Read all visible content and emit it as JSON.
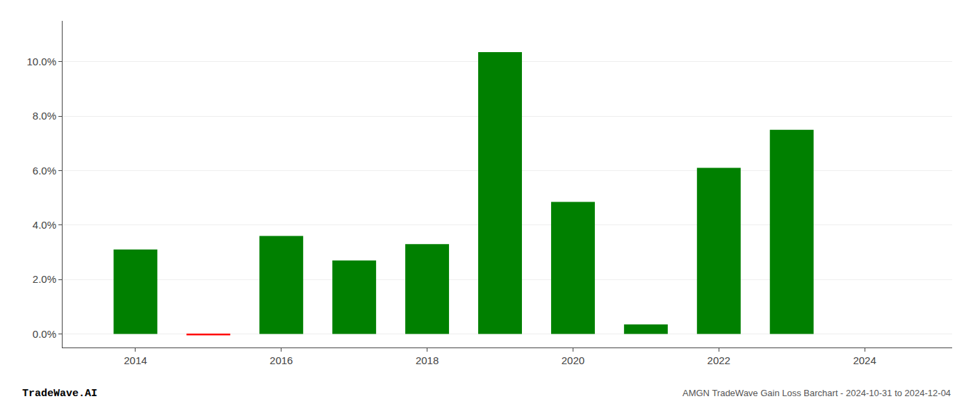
{
  "chart_data": {
    "type": "bar",
    "x": [
      2014,
      2015,
      2016,
      2017,
      2018,
      2019,
      2020,
      2021,
      2022,
      2023
    ],
    "values": [
      0.031,
      -0.0005,
      0.036,
      0.027,
      0.033,
      0.1035,
      0.0485,
      0.0035,
      0.061,
      0.075
    ],
    "colors": [
      "#008000",
      "#ff0000",
      "#008000",
      "#008000",
      "#008000",
      "#008000",
      "#008000",
      "#008000",
      "#008000",
      "#008000"
    ],
    "xlim": [
      2013.0,
      2025.2
    ],
    "xticks": [
      2014,
      2016,
      2018,
      2020,
      2022,
      2024
    ],
    "ylim": [
      -0.005,
      0.115
    ],
    "yticks": [
      {
        "value": 0.0,
        "label": "0.0%"
      },
      {
        "value": 0.02,
        "label": "2.0%"
      },
      {
        "value": 0.04,
        "label": "4.0%"
      },
      {
        "value": 0.06,
        "label": "6.0%"
      },
      {
        "value": 0.08,
        "label": "8.0%"
      },
      {
        "value": 0.1,
        "label": "10.0%"
      }
    ],
    "grid": true,
    "annotations": [
      "TradeWave.AI",
      "AMGN TradeWave Gain Loss Barchart - 2024-10-31 to 2024-12-04"
    ]
  }
}
